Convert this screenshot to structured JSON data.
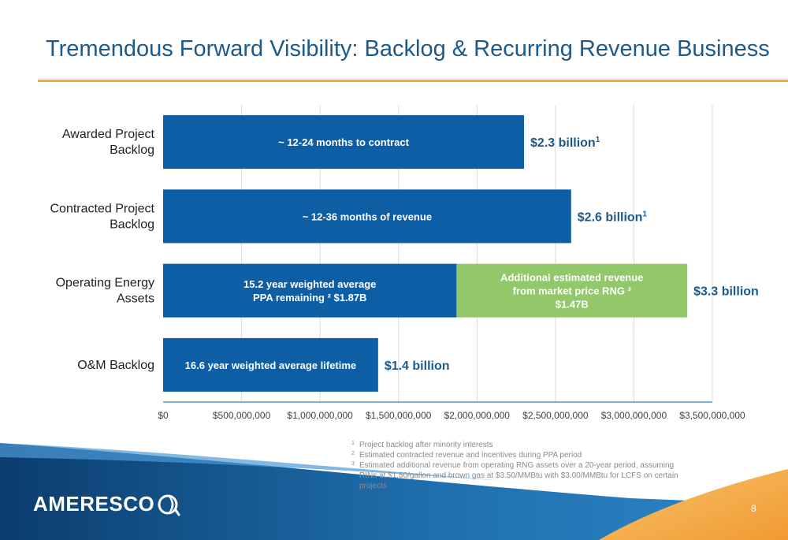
{
  "slide": {
    "title": "Tremendous Forward Visibility: Backlog & Recurring Revenue Business",
    "page_number": "8",
    "logo_text": "AMERESCO"
  },
  "colors": {
    "title": "#1c5a8c",
    "accent_rule": "#f5a941",
    "bar_blue": "#0e5ea6",
    "bar_green": "#92c76a",
    "value_label": "#1c5a8c",
    "grid": "#d9d9d9"
  },
  "chart_data": {
    "type": "bar",
    "orientation": "horizontal",
    "stacked": true,
    "xlim": [
      0,
      3500000000
    ],
    "x_ticks": [
      0,
      500000000,
      1000000000,
      1500000000,
      2000000000,
      2500000000,
      3000000000,
      3500000000
    ],
    "x_tick_labels": [
      "$0",
      "$500,000,000",
      "$1,000,000,000",
      "$1,500,000,000",
      "$2,000,000,000",
      "$2,500,000,000",
      "$3,000,000,000",
      "$3,500,000,000"
    ],
    "grid": true,
    "categories": [
      {
        "label_lines": [
          "Awarded Project",
          "Backlog"
        ]
      },
      {
        "label_lines": [
          "Contracted Project",
          "Backlog"
        ]
      },
      {
        "label_lines": [
          "Operating Energy",
          "Assets"
        ]
      },
      {
        "label_lines": [
          "O&M Backlog"
        ]
      }
    ],
    "rows": [
      {
        "segments": [
          {
            "value": 2300000000,
            "color": "#0e5ea6",
            "text_lines": [
              "~ 12-24 months to contract"
            ]
          }
        ],
        "total_label": "$2.3 billion",
        "total_sup": "1"
      },
      {
        "segments": [
          {
            "value": 2600000000,
            "color": "#0e5ea6",
            "text_lines": [
              "~ 12-36 months of revenue"
            ]
          }
        ],
        "total_label": "$2.6 billion",
        "total_sup": "1"
      },
      {
        "segments": [
          {
            "value": 1870000000,
            "color": "#0e5ea6",
            "text_lines": [
              "15.2 year weighted average",
              "PPA remaining ² $1.87B"
            ]
          },
          {
            "value": 1470000000,
            "color": "#92c76a",
            "text_lines": [
              "Additional estimated revenue",
              "from market price RNG ³",
              "$1.47B"
            ]
          }
        ],
        "total_label": "$3.3 billion",
        "total_sup": ""
      },
      {
        "segments": [
          {
            "value": 1370000000,
            "color": "#0e5ea6",
            "text_lines": [
              "16.6 year weighted average lifetime"
            ]
          }
        ],
        "total_label": "$1.4 billion",
        "total_sup": ""
      }
    ]
  },
  "footnotes": [
    {
      "num": "1",
      "text": "Project backlog after minority interests"
    },
    {
      "num": "2",
      "text": "Estimated contracted revenue and incentives during PPA period"
    },
    {
      "num": "3",
      "text": "Estimated additional revenue from operating RNG assets over a 20-year period, assuming RINs at $1.50/gallon and brown gas at $3.50/MMBtu with $3.00/MMBtu for LCFS on certain projects"
    }
  ]
}
